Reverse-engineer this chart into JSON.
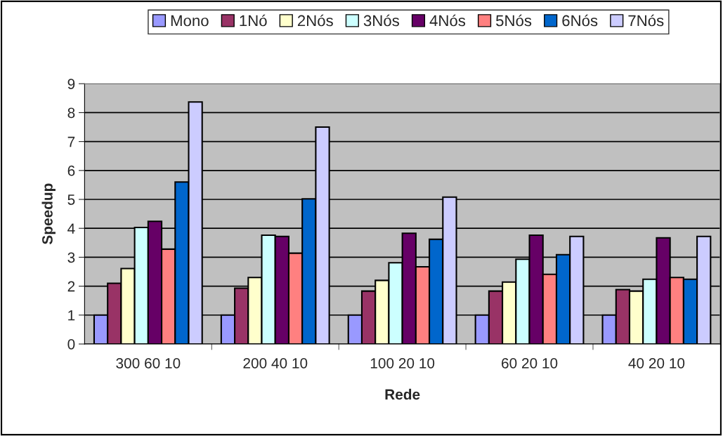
{
  "chart_data": {
    "type": "bar",
    "xlabel": "Rede",
    "ylabel": "Speedup",
    "categories": [
      "300 60 10",
      "200 40 10",
      "100 20 10",
      "60 20 10",
      "40 20 10"
    ],
    "series": [
      {
        "name": "Mono",
        "color": "#9999ff",
        "values": [
          1,
          1,
          1,
          1,
          1
        ]
      },
      {
        "name": "1Nó",
        "color": "#993366",
        "values": [
          2.1,
          1.93,
          1.83,
          1.83,
          1.88
        ]
      },
      {
        "name": "2Nós",
        "color": "#ffffcc",
        "values": [
          2.61,
          2.3,
          2.2,
          2.14,
          1.83
        ]
      },
      {
        "name": "3Nós",
        "color": "#ccffff",
        "values": [
          4.03,
          3.76,
          2.81,
          2.93,
          2.24
        ]
      },
      {
        "name": "4Nós",
        "color": "#660066",
        "values": [
          4.24,
          3.72,
          3.83,
          3.76,
          3.67
        ]
      },
      {
        "name": "5Nós",
        "color": "#ff8080",
        "values": [
          3.28,
          3.14,
          2.67,
          2.41,
          2.3
        ]
      },
      {
        "name": "6Nós",
        "color": "#0066cc",
        "values": [
          5.6,
          5.02,
          3.62,
          3.09,
          2.24
        ]
      },
      {
        "name": "7Nós",
        "color": "#ccccff",
        "values": [
          8.37,
          7.5,
          5.08,
          3.72,
          3.72
        ]
      }
    ],
    "ylim": [
      0,
      9
    ],
    "yticks": [
      0,
      1,
      2,
      3,
      4,
      5,
      6,
      7,
      8,
      9
    ],
    "grid": "y",
    "legend": "top"
  }
}
